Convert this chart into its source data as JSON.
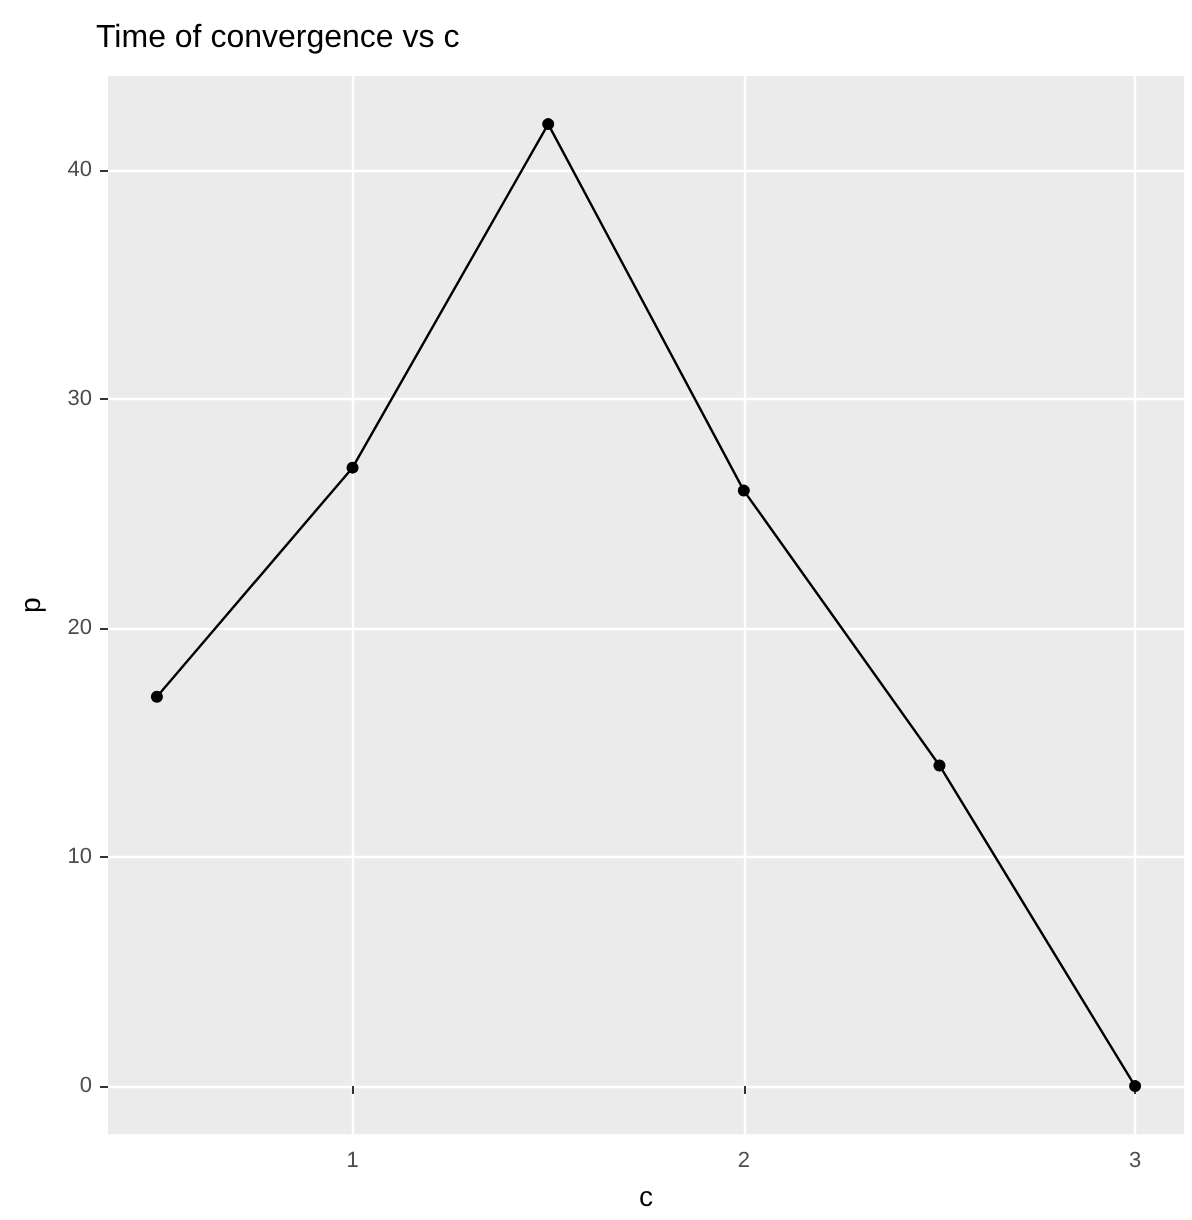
{
  "chart_data": {
    "type": "line",
    "title": "Time of convergence vs c",
    "xlabel": "c",
    "ylabel": "p",
    "x": [
      0.5,
      1,
      1.5,
      2,
      2.5,
      3
    ],
    "series": [
      {
        "color": "#000000",
        "values": [
          17,
          27,
          42,
          26,
          14,
          0
        ]
      }
    ],
    "xlim": [
      0.375,
      3.125
    ],
    "xticks": [
      1,
      2,
      3
    ],
    "ylim": [
      -2.1,
      44.1
    ],
    "yticks": [
      0,
      10,
      20,
      30,
      40
    ],
    "grid": true,
    "marker": "circle",
    "line_style": "solid"
  }
}
